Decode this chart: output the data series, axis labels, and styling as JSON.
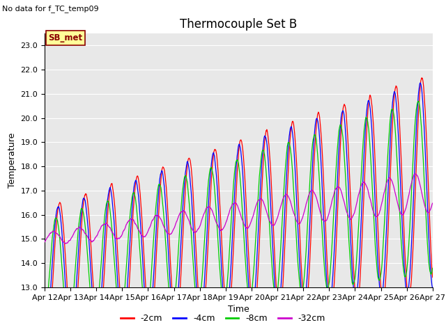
{
  "title": "Thermocouple Set B",
  "subtitle": "No data for f_TC_temp09",
  "xlabel": "Time",
  "ylabel": "Temperature",
  "ylim": [
    13.0,
    23.5
  ],
  "yticks": [
    13.0,
    14.0,
    15.0,
    16.0,
    17.0,
    18.0,
    19.0,
    20.0,
    21.0,
    22.0,
    23.0
  ],
  "x_tick_labels": [
    "Apr 12",
    "Apr 13",
    "Apr 14",
    "Apr 15",
    "Apr 16",
    "Apr 17",
    "Apr 18",
    "Apr 19",
    "Apr 20",
    "Apr 21",
    "Apr 22",
    "Apr 23",
    "Apr 24",
    "Apr 25",
    "Apr 26",
    "Apr 27"
  ],
  "colors": {
    "m2cm": "#ff0000",
    "m4cm": "#0000ff",
    "m8cm": "#00cc00",
    "m32cm": "#cc00cc"
  },
  "legend_labels": [
    "-2cm",
    "-4cm",
    "-8cm",
    "-32cm"
  ],
  "legend_box_text": "SB_met",
  "background_color": "#e8e8e8",
  "grid_color": "#ffffff",
  "title_fontsize": 12,
  "axis_fontsize": 9,
  "tick_fontsize": 8
}
